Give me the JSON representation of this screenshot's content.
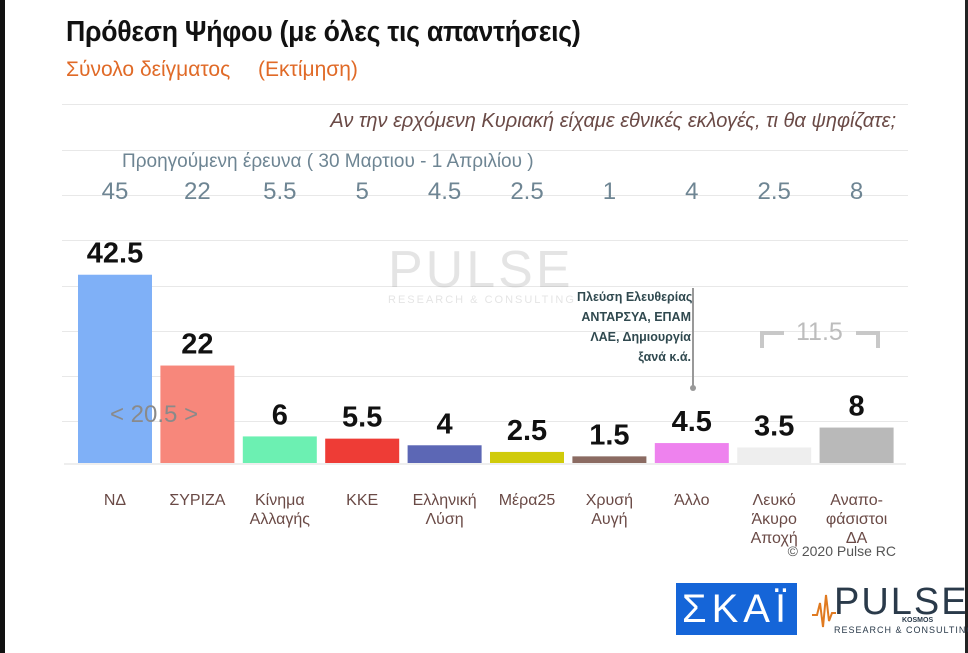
{
  "header": {
    "title": "Πρόθεση Ψήφου (με όλες τις απαντήσεις)",
    "subtitle_left": "Σύνολο δείγματος",
    "subtitle_right": "(Εκτίμηση)",
    "question": "Αν την ερχόμενη Κυριακή είχαμε εθνικές εκλογές, τι θα ψηφίζατε;",
    "previous_label": "Προηγούμενη έρευνα   ( 30 Μαρτιου - 1 Απριλίου )"
  },
  "chart_data": {
    "type": "bar",
    "categories": [
      "ΝΔ",
      "ΣΥΡΙΖΑ",
      "Κίνημα Αλλαγής",
      "ΚΚΕ",
      "Ελληνική Λύση",
      "Μέρα25",
      "Χρυσή Αυγή",
      "Άλλο",
      "Λευκό Άκυρο Αποχή",
      "Αναπο-φάσιστοι ΔΑ"
    ],
    "category_lines": [
      [
        "ΝΔ"
      ],
      [
        "ΣΥΡΙΖΑ"
      ],
      [
        "Κίνημα",
        "Αλλαγής"
      ],
      [
        "ΚΚΕ"
      ],
      [
        "Ελληνική",
        "Λύση"
      ],
      [
        "Μέρα25"
      ],
      [
        "Χρυσή",
        "Αυγή"
      ],
      [
        "Άλλο"
      ],
      [
        "Λευκό",
        "Άκυρο",
        "Αποχή"
      ],
      [
        "Αναπο-",
        "φάσιστοι",
        "ΔΑ"
      ]
    ],
    "series": [
      {
        "values": [
          42.5,
          22,
          6,
          5.5,
          4,
          2.5,
          1.5,
          4.5,
          3.5,
          8
        ]
      },
      {
        "name": "Προηγούμενη έρευνα",
        "values": [
          45,
          22,
          5.5,
          5,
          4.5,
          2.5,
          1,
          4,
          2.5,
          8
        ]
      }
    ],
    "value_labels": [
      "42.5",
      "22",
      "6",
      "5.5",
      "4",
      "2.5",
      "1.5",
      "4.5",
      "3.5",
      "8"
    ],
    "previous_labels": [
      "45",
      "22",
      "5.5",
      "5",
      "4.5",
      "2.5",
      "1",
      "4",
      "2.5",
      "8"
    ],
    "colors": [
      "#7fb0f7",
      "#f7877b",
      "#6cf0b2",
      "#ee3c36",
      "#5c67b5",
      "#d0cb0a",
      "#8b6b62",
      "#ee82ee",
      "#eeeeee",
      "#b9b9b9"
    ],
    "ylim": [
      0,
      50
    ],
    "grid": true
  },
  "annotations": {
    "other_note": [
      "Πλεύση Ελευθερίας",
      "ΑΝΤΑΡΣΥΑ, ΕΠΑΜ",
      "ΛΑΕ, Δημιουργία",
      "ξανά    κ.ά."
    ],
    "diff_left": "< 20.5 >",
    "diff_right": "11.5"
  },
  "watermark": {
    "text": "PULSE",
    "sub": "RESEARCH & CONSULTING",
    "kosmos": "KOSMOS"
  },
  "footer": {
    "copyright": "© 2020 Pulse RC",
    "skai_logo": "ΣΚΑΪ",
    "pulse_logo": "PULSE",
    "pulse_kosmos": "KOSMOS",
    "pulse_sub": "RESEARCH & CONSULTING"
  }
}
